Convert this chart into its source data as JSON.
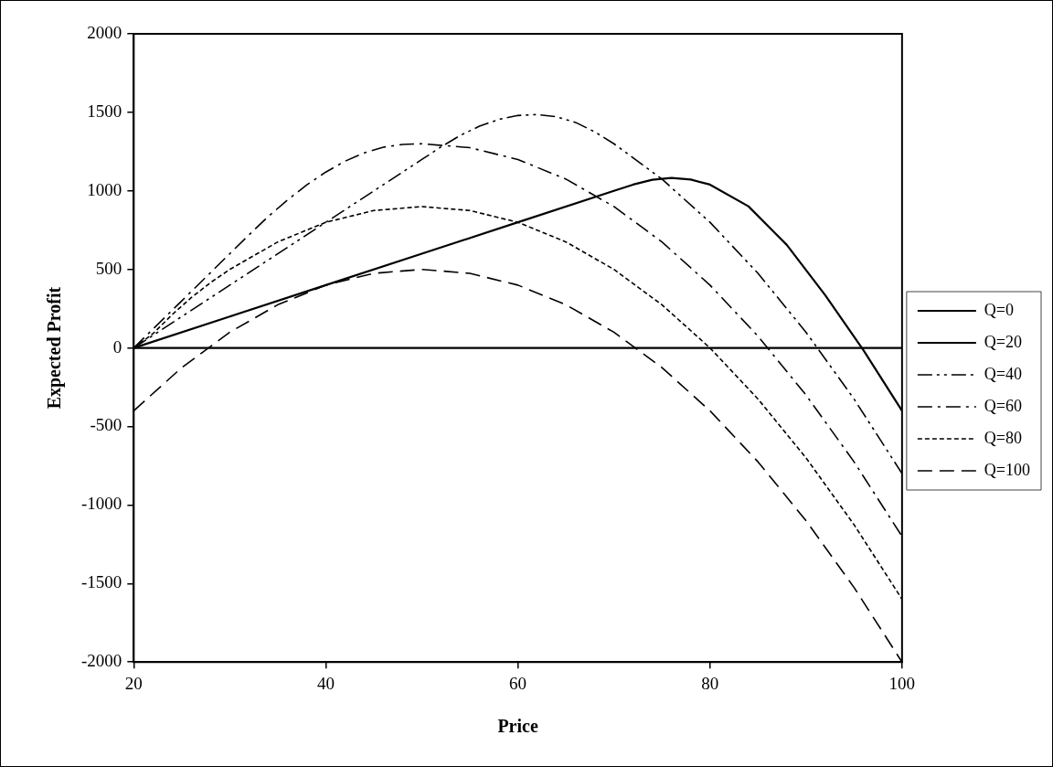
{
  "chart_data": {
    "type": "line",
    "xlabel": "Price",
    "ylabel": "Expected Profit",
    "xlim": [
      20,
      100
    ],
    "xticks": [
      20,
      40,
      60,
      80,
      100
    ],
    "ylim": [
      -2000,
      2000
    ],
    "yticks": [
      -2000,
      -1500,
      -1000,
      -500,
      0,
      500,
      1000,
      1500,
      2000
    ],
    "grid": false,
    "legend": "right",
    "marker": "none",
    "series": [
      {
        "name": "Q=0",
        "color": "#000000",
        "line_style": "solid",
        "x": [
          20,
          100
        ],
        "values": [
          0,
          0
        ]
      },
      {
        "name": "Q=20",
        "color": "#000000",
        "line_style": "solid",
        "x": [
          20,
          30,
          40,
          50,
          60,
          70,
          72,
          74,
          76,
          78,
          80,
          84,
          88,
          92,
          96,
          100
        ],
        "values": [
          0,
          200,
          400,
          600,
          800,
          1000,
          1040,
          1071,
          1082,
          1072,
          1040,
          902,
          656,
          336,
          -16,
          -400
        ]
      },
      {
        "name": "Q=40",
        "color": "#000000",
        "line_style": "dashdotdot",
        "x": [
          20,
          30,
          40,
          50,
          52,
          54,
          56,
          58,
          60,
          62,
          64,
          66,
          68,
          70,
          75,
          80,
          85,
          90,
          95,
          100
        ],
        "values": [
          0,
          400,
          800,
          1200,
          1280,
          1353,
          1412,
          1455,
          1480,
          1486,
          1472,
          1436,
          1376,
          1300,
          1075,
          800,
          475,
          100,
          -325,
          -800
        ]
      },
      {
        "name": "Q=60",
        "color": "#000000",
        "line_style": "dashdot",
        "x": [
          20,
          25,
          30,
          32,
          34,
          36,
          38,
          40,
          42,
          44,
          46,
          48,
          50,
          55,
          60,
          65,
          70,
          75,
          80,
          85,
          90,
          95,
          100
        ],
        "values": [
          0,
          300,
          600,
          720,
          836,
          942,
          1037,
          1120,
          1189,
          1242,
          1278,
          1296,
          1300,
          1275,
          1200,
          1075,
          900,
          675,
          400,
          75,
          -300,
          -725,
          -1200
        ]
      },
      {
        "name": "Q=80",
        "color": "#000000",
        "line_style": "dotted",
        "x": [
          20,
          22,
          24,
          26,
          28,
          30,
          35,
          40,
          45,
          50,
          55,
          60,
          65,
          70,
          75,
          80,
          85,
          90,
          95,
          100
        ],
        "values": [
          0,
          91,
          212,
          321,
          416,
          500,
          675,
          800,
          875,
          900,
          875,
          800,
          675,
          500,
          275,
          0,
          -325,
          -700,
          -1125,
          -1600
        ]
      },
      {
        "name": "Q=100",
        "color": "#000000",
        "line_style": "dashed",
        "x": [
          20,
          25,
          30,
          35,
          40,
          45,
          50,
          55,
          60,
          65,
          70,
          75,
          80,
          85,
          90,
          95,
          100
        ],
        "values": [
          -400,
          -125,
          100,
          275,
          400,
          475,
          500,
          475,
          400,
          275,
          100,
          -125,
          -400,
          -725,
          -1100,
          -1525,
          -2000
        ]
      }
    ]
  }
}
